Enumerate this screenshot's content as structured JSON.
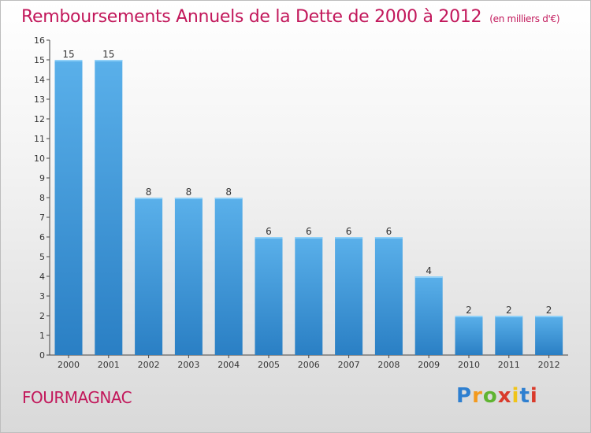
{
  "title": "Remboursements Annuels de la Dette de 2000 à 2012",
  "unit": "(en milliers d'€)",
  "commune": "FOURMAGNAC",
  "logo": {
    "letters": [
      "P",
      "r",
      "o",
      "x",
      "i",
      "t",
      "i"
    ],
    "colors": [
      "#2e7fd0",
      "#f39a1e",
      "#5fb431",
      "#d93a2b",
      "#f0c419",
      "#2e7fd0",
      "#d93a2b"
    ]
  },
  "colors": {
    "bar_light": "#5ab0ea",
    "bar_dark": "#2a7fc4",
    "title": "#c2185b"
  },
  "chart_data": {
    "type": "bar",
    "categories": [
      "2000",
      "2001",
      "2002",
      "2003",
      "2004",
      "2005",
      "2006",
      "2007",
      "2008",
      "2009",
      "2010",
      "2011",
      "2012"
    ],
    "values": [
      15,
      15,
      8,
      8,
      8,
      6,
      6,
      6,
      6,
      4,
      2,
      2,
      2
    ],
    "yticks": [
      "0",
      "1",
      "2",
      "3",
      "4",
      "5",
      "6",
      "7",
      "8",
      "9",
      "10",
      "11",
      "12",
      "13",
      "14",
      "15",
      "16"
    ],
    "ylim": [
      0,
      16
    ],
    "grid": false,
    "legend": "none"
  }
}
